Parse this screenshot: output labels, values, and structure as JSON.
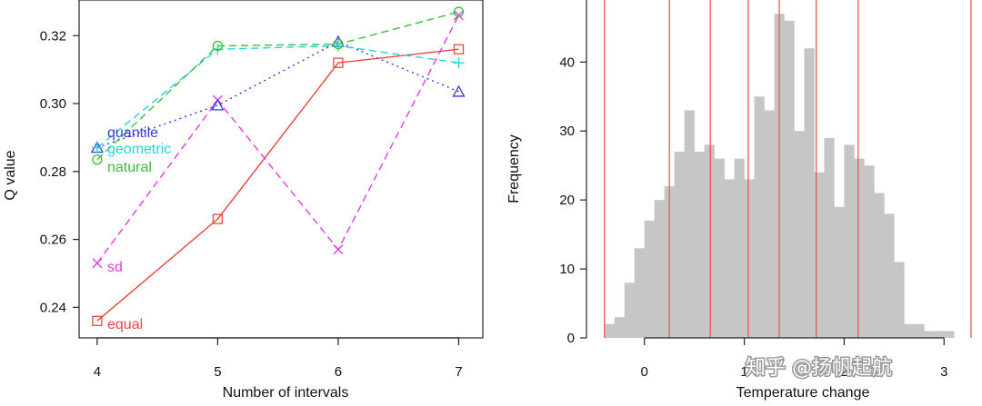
{
  "chart_data": [
    {
      "type": "line",
      "xlabel": "Number of intervals",
      "ylabel": "Q value",
      "x": [
        4,
        5,
        6,
        7
      ],
      "xlim": [
        3.85,
        7.2
      ],
      "ylim": [
        0.231,
        0.3305
      ],
      "xticks": [
        "4",
        "5",
        "6",
        "7"
      ],
      "yticks": [
        "0.24",
        "0.26",
        "0.28",
        "0.30",
        "0.32"
      ],
      "grid": false,
      "series": [
        {
          "name": "equal",
          "values": [
            0.236,
            0.266,
            0.312,
            0.316
          ],
          "color": "#e8473f",
          "marker": "square",
          "dash": "solid"
        },
        {
          "name": "sd",
          "values": [
            0.253,
            0.301,
            0.257,
            0.326
          ],
          "color": "#e23ee2",
          "marker": "x",
          "dash": "dashed"
        },
        {
          "name": "quantile",
          "values": [
            0.287,
            0.2995,
            0.3182,
            0.3035
          ],
          "color": "#3a3ae0",
          "marker": "triangle",
          "dash": "dotted"
        },
        {
          "name": "geometric",
          "values": [
            0.287,
            0.316,
            0.317,
            0.312
          ],
          "color": "#22d3dd",
          "marker": "plus",
          "dash": "dashed"
        },
        {
          "name": "natural",
          "values": [
            0.2835,
            0.317,
            0.3175,
            0.327
          ],
          "color": "#3bbf3b",
          "marker": "circle",
          "dash": "dashed"
        }
      ]
    },
    {
      "type": "bar",
      "xlabel": "Temperature change",
      "ylabel": "Frequency",
      "xlim": [
        -0.58,
        3.38
      ],
      "ylim": [
        0,
        49
      ],
      "xticks": [
        "0",
        "1",
        "2",
        "3"
      ],
      "yticks": [
        "0",
        "10",
        "20",
        "30",
        "40"
      ],
      "bin_start": -0.4,
      "bin_width": 0.1,
      "values": [
        2,
        3,
        8,
        13,
        17,
        20,
        22,
        27,
        33,
        27,
        28,
        26,
        23,
        26,
        23,
        35,
        33,
        47,
        46,
        30,
        42,
        24,
        29,
        19,
        28,
        26,
        25,
        21,
        18,
        11,
        2,
        2,
        1,
        1,
        1
      ],
      "bar_color": "#c6c6c6",
      "class_breaks": [
        -0.4,
        0.25,
        0.66,
        1.04,
        1.35,
        1.72,
        2.14,
        3.27
      ],
      "break_color": "#ef5656"
    }
  ],
  "watermark": "知乎 @扬帆起航"
}
